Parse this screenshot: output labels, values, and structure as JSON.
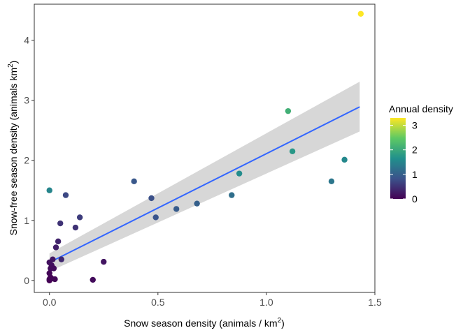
{
  "chart_data": {
    "type": "scatter",
    "title": "",
    "xlabel": "Snow season density (animals / km",
    "xlabel_sup": "2",
    "xlabel_end": ")",
    "ylabel": "Snow-free season density (animals km",
    "ylabel_sup": "2",
    "ylabel_end": ")",
    "xlim": [
      -0.07,
      1.5
    ],
    "ylim": [
      -0.2,
      4.6
    ],
    "x_ticks": [
      0.0,
      0.5,
      1.0,
      1.5
    ],
    "x_tick_labels": [
      "0.0",
      "0.5",
      "1.0",
      "1.5"
    ],
    "y_ticks": [
      0,
      1,
      2,
      3,
      4
    ],
    "y_tick_labels": [
      "0",
      "1",
      "2",
      "3",
      "4"
    ],
    "grid": false,
    "legend": {
      "title": "Annual density",
      "position": "right",
      "type": "colorbar",
      "range": [
        0,
        3.3
      ],
      "ticks": [
        0,
        1,
        2,
        3
      ],
      "tick_labels": [
        "0",
        "1",
        "2",
        "3"
      ],
      "palette": [
        "#440154",
        "#3b528b",
        "#21908c",
        "#5dc963",
        "#fde725"
      ]
    },
    "colors": {
      "trend_line": "#3366ff",
      "confidence_band": "#d3d3d3",
      "panel_border": "#333333"
    },
    "trend": {
      "x": [
        0.0,
        1.43
      ],
      "y": [
        0.3,
        2.89
      ],
      "ci_lower": [
        0.15,
        2.48
      ],
      "ci_upper": [
        0.45,
        3.31
      ]
    },
    "points": [
      {
        "x": 0.0,
        "y": 0.0,
        "z": 0.0
      },
      {
        "x": 0.0,
        "y": 0.02,
        "z": 0.01
      },
      {
        "x": 0.005,
        "y": 0.05,
        "z": 0.02
      },
      {
        "x": 0.01,
        "y": 0.03,
        "z": 0.03
      },
      {
        "x": 0.0,
        "y": 0.12,
        "z": 0.05
      },
      {
        "x": 0.005,
        "y": 0.2,
        "z": 0.1
      },
      {
        "x": 0.01,
        "y": 0.25,
        "z": 0.12
      },
      {
        "x": 0.0,
        "y": 0.3,
        "z": 0.15
      },
      {
        "x": 0.015,
        "y": 0.35,
        "z": 0.2
      },
      {
        "x": 0.02,
        "y": 0.2,
        "z": 0.1
      },
      {
        "x": 0.025,
        "y": 0.02,
        "z": 0.05
      },
      {
        "x": 0.03,
        "y": 0.55,
        "z": 0.3
      },
      {
        "x": 0.04,
        "y": 0.65,
        "z": 0.35
      },
      {
        "x": 0.05,
        "y": 0.95,
        "z": 0.5
      },
      {
        "x": 0.055,
        "y": 0.35,
        "z": 0.4
      },
      {
        "x": 0.0,
        "y": 1.5,
        "z": 1.5
      },
      {
        "x": 0.075,
        "y": 1.42,
        "z": 0.72
      },
      {
        "x": 0.12,
        "y": 0.88,
        "z": 0.5
      },
      {
        "x": 0.14,
        "y": 1.05,
        "z": 0.6
      },
      {
        "x": 0.2,
        "y": 0.01,
        "z": 0.1
      },
      {
        "x": 0.25,
        "y": 0.31,
        "z": 0.2
      },
      {
        "x": 0.39,
        "y": 1.65,
        "z": 0.9
      },
      {
        "x": 0.47,
        "y": 1.37,
        "z": 0.8
      },
      {
        "x": 0.49,
        "y": 1.05,
        "z": 0.85
      },
      {
        "x": 0.585,
        "y": 1.19,
        "z": 0.95
      },
      {
        "x": 0.68,
        "y": 1.28,
        "z": 1.0
      },
      {
        "x": 0.84,
        "y": 1.42,
        "z": 1.2
      },
      {
        "x": 0.875,
        "y": 1.78,
        "z": 1.6
      },
      {
        "x": 1.1,
        "y": 2.82,
        "z": 2.1
      },
      {
        "x": 1.12,
        "y": 2.15,
        "z": 1.75
      },
      {
        "x": 1.3,
        "y": 1.65,
        "z": 1.3
      },
      {
        "x": 1.36,
        "y": 2.01,
        "z": 1.55
      },
      {
        "x": 1.435,
        "y": 4.44,
        "z": 3.3
      }
    ]
  }
}
